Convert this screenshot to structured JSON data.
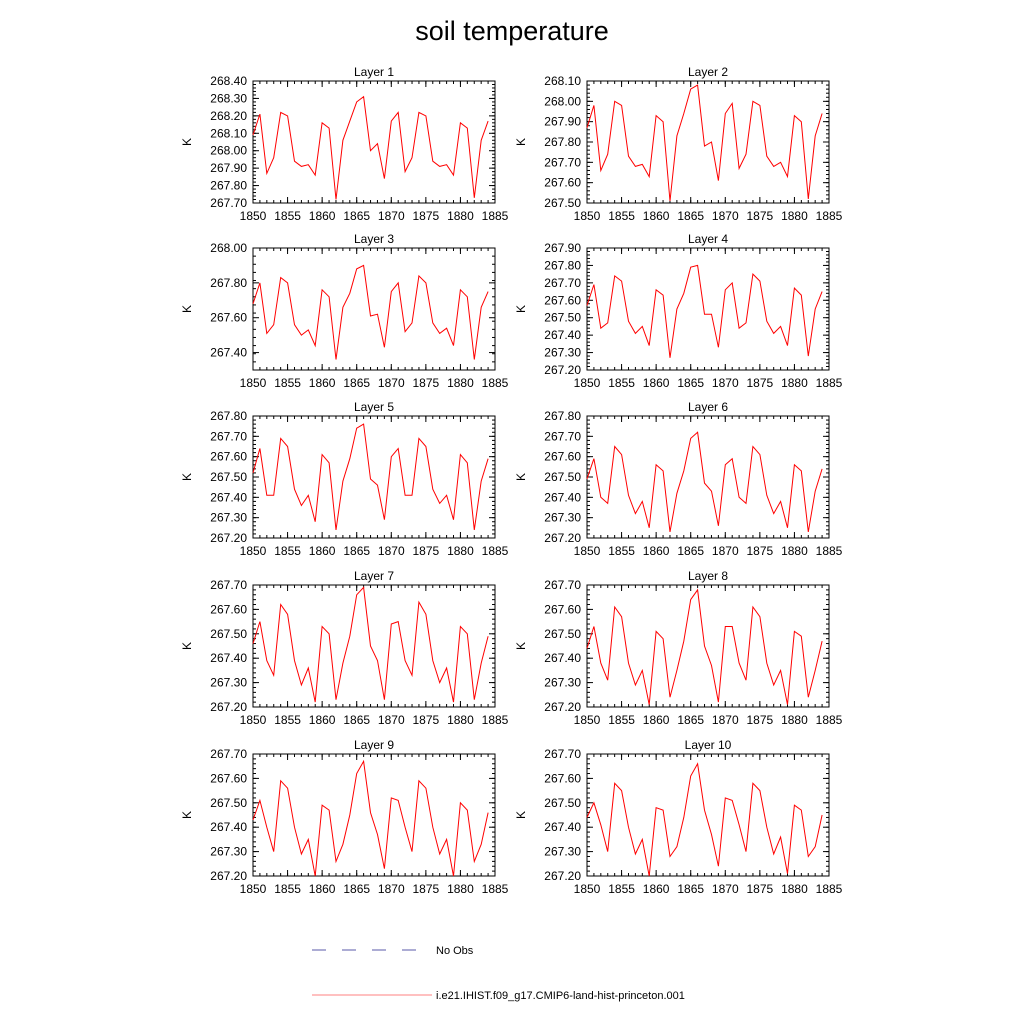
{
  "title": "soil temperature",
  "colors": {
    "model_line": "#ff0000",
    "obs_line": "#5a5aaa",
    "axis": "#000000"
  },
  "legend": [
    {
      "label": "No Obs",
      "style": "dashed",
      "color": "#5a5aaa"
    },
    {
      "label": "i.e21.IHIST.f09_g17.CMIP6-land-hist-princeton.001",
      "style": "solid",
      "color": "#ff8080"
    }
  ],
  "chart_data": [
    {
      "type": "line",
      "title": "Layer 1",
      "ylabel": "K",
      "ylim": [
        267.7,
        268.4
      ],
      "yticks": [
        "268.40",
        "268.30",
        "268.20",
        "268.10",
        "268.00",
        "267.90",
        "267.80",
        "267.70"
      ],
      "xlim": [
        1850,
        1885
      ],
      "xticks": [
        "1850",
        "1855",
        "1860",
        "1865",
        "1870",
        "1875",
        "1880",
        "1885"
      ],
      "x": [
        1850,
        1851,
        1852,
        1853,
        1854,
        1855,
        1856,
        1857,
        1858,
        1859,
        1860,
        1861,
        1862,
        1863,
        1864,
        1865,
        1866,
        1867,
        1868,
        1869,
        1870,
        1871,
        1872,
        1873,
        1874,
        1875,
        1876,
        1877,
        1878,
        1879,
        1880,
        1881,
        1882,
        1883,
        1884
      ],
      "series": [
        {
          "values": [
            268.09,
            268.21,
            267.87,
            267.96,
            268.22,
            268.2,
            267.94,
            267.91,
            267.92,
            267.86,
            268.16,
            268.13,
            267.72,
            268.06,
            268.17,
            268.28,
            268.31,
            268.0,
            268.04,
            267.84,
            268.17,
            268.22,
            267.88,
            267.96,
            268.22,
            268.2,
            267.94,
            267.91,
            267.92,
            267.86,
            268.16,
            268.13,
            267.73,
            268.06,
            268.17
          ]
        }
      ]
    },
    {
      "type": "line",
      "title": "Layer 2",
      "ylabel": "K",
      "ylim": [
        267.5,
        268.1
      ],
      "yticks": [
        "268.10",
        "268.00",
        "267.90",
        "267.80",
        "267.70",
        "267.60",
        "267.50"
      ],
      "xlim": [
        1850,
        1885
      ],
      "xticks": [
        "1850",
        "1855",
        "1860",
        "1865",
        "1870",
        "1875",
        "1880",
        "1885"
      ],
      "x": [
        1850,
        1851,
        1852,
        1853,
        1854,
        1855,
        1856,
        1857,
        1858,
        1859,
        1860,
        1861,
        1862,
        1863,
        1864,
        1865,
        1866,
        1867,
        1868,
        1869,
        1870,
        1871,
        1872,
        1873,
        1874,
        1875,
        1876,
        1877,
        1878,
        1879,
        1880,
        1881,
        1882,
        1883,
        1884
      ],
      "series": [
        {
          "values": [
            267.87,
            267.98,
            267.66,
            267.74,
            268.0,
            267.98,
            267.73,
            267.68,
            267.69,
            267.63,
            267.93,
            267.9,
            267.51,
            267.83,
            267.94,
            268.06,
            268.08,
            267.78,
            267.8,
            267.61,
            267.94,
            267.99,
            267.67,
            267.74,
            268.0,
            267.98,
            267.73,
            267.68,
            267.7,
            267.63,
            267.93,
            267.9,
            267.52,
            267.83,
            267.94
          ]
        }
      ]
    },
    {
      "type": "line",
      "title": "Layer 3",
      "ylabel": "K",
      "ylim": [
        267.3,
        268.0
      ],
      "yticks": [
        "268.00",
        "267.80",
        "267.60",
        "267.40"
      ],
      "xlim": [
        1850,
        1885
      ],
      "xticks": [
        "1850",
        "1855",
        "1860",
        "1865",
        "1870",
        "1875",
        "1880",
        "1885"
      ],
      "x": [
        1850,
        1851,
        1852,
        1853,
        1854,
        1855,
        1856,
        1857,
        1858,
        1859,
        1860,
        1861,
        1862,
        1863,
        1864,
        1865,
        1866,
        1867,
        1868,
        1869,
        1870,
        1871,
        1872,
        1873,
        1874,
        1875,
        1876,
        1877,
        1878,
        1879,
        1880,
        1881,
        1882,
        1883,
        1884
      ],
      "series": [
        {
          "values": [
            267.68,
            267.8,
            267.51,
            267.56,
            267.83,
            267.8,
            267.56,
            267.5,
            267.53,
            267.44,
            267.76,
            267.72,
            267.36,
            267.66,
            267.74,
            267.88,
            267.9,
            267.61,
            267.62,
            267.43,
            267.75,
            267.8,
            267.52,
            267.57,
            267.84,
            267.8,
            267.57,
            267.51,
            267.54,
            267.44,
            267.76,
            267.72,
            267.36,
            267.66,
            267.75
          ]
        }
      ]
    },
    {
      "type": "line",
      "title": "Layer 4",
      "ylabel": "K",
      "ylim": [
        267.2,
        267.9
      ],
      "yticks": [
        "267.90",
        "267.80",
        "267.70",
        "267.60",
        "267.50",
        "267.40",
        "267.30",
        "267.20"
      ],
      "xlim": [
        1850,
        1885
      ],
      "xticks": [
        "1850",
        "1855",
        "1860",
        "1865",
        "1870",
        "1875",
        "1880",
        "1885"
      ],
      "x": [
        1850,
        1851,
        1852,
        1853,
        1854,
        1855,
        1856,
        1857,
        1858,
        1859,
        1860,
        1861,
        1862,
        1863,
        1864,
        1865,
        1866,
        1867,
        1868,
        1869,
        1870,
        1871,
        1872,
        1873,
        1874,
        1875,
        1876,
        1877,
        1878,
        1879,
        1880,
        1881,
        1882,
        1883,
        1884
      ],
      "series": [
        {
          "values": [
            267.57,
            267.69,
            267.44,
            267.47,
            267.74,
            267.71,
            267.48,
            267.41,
            267.45,
            267.34,
            267.66,
            267.63,
            267.27,
            267.55,
            267.64,
            267.79,
            267.8,
            267.52,
            267.52,
            267.33,
            267.66,
            267.7,
            267.44,
            267.47,
            267.75,
            267.71,
            267.48,
            267.41,
            267.45,
            267.34,
            267.67,
            267.63,
            267.28,
            267.55,
            267.65
          ]
        }
      ]
    },
    {
      "type": "line",
      "title": "Layer 5",
      "ylabel": "K",
      "ylim": [
        267.2,
        267.8
      ],
      "yticks": [
        "267.80",
        "267.70",
        "267.60",
        "267.50",
        "267.40",
        "267.30",
        "267.20"
      ],
      "xlim": [
        1850,
        1885
      ],
      "xticks": [
        "1850",
        "1855",
        "1860",
        "1865",
        "1870",
        "1875",
        "1880",
        "1885"
      ],
      "x": [
        1850,
        1851,
        1852,
        1853,
        1854,
        1855,
        1856,
        1857,
        1858,
        1859,
        1860,
        1861,
        1862,
        1863,
        1864,
        1865,
        1866,
        1867,
        1868,
        1869,
        1870,
        1871,
        1872,
        1873,
        1874,
        1875,
        1876,
        1877,
        1878,
        1879,
        1880,
        1881,
        1882,
        1883,
        1884
      ],
      "series": [
        {
          "values": [
            267.52,
            267.64,
            267.41,
            267.41,
            267.69,
            267.65,
            267.44,
            267.36,
            267.41,
            267.28,
            267.61,
            267.57,
            267.24,
            267.48,
            267.59,
            267.74,
            267.76,
            267.49,
            267.46,
            267.29,
            267.6,
            267.64,
            267.41,
            267.41,
            267.69,
            267.65,
            267.44,
            267.37,
            267.41,
            267.29,
            267.61,
            267.57,
            267.24,
            267.48,
            267.59
          ]
        }
      ]
    },
    {
      "type": "line",
      "title": "Layer 6",
      "ylabel": "K",
      "ylim": [
        267.2,
        267.8
      ],
      "yticks": [
        "267.80",
        "267.70",
        "267.60",
        "267.50",
        "267.40",
        "267.30",
        "267.20"
      ],
      "xlim": [
        1850,
        1885
      ],
      "xticks": [
        "1850",
        "1855",
        "1860",
        "1865",
        "1870",
        "1875",
        "1880",
        "1885"
      ],
      "x": [
        1850,
        1851,
        1852,
        1853,
        1854,
        1855,
        1856,
        1857,
        1858,
        1859,
        1860,
        1861,
        1862,
        1863,
        1864,
        1865,
        1866,
        1867,
        1868,
        1869,
        1870,
        1871,
        1872,
        1873,
        1874,
        1875,
        1876,
        1877,
        1878,
        1879,
        1880,
        1881,
        1882,
        1883,
        1884
      ],
      "series": [
        {
          "values": [
            267.49,
            267.59,
            267.4,
            267.37,
            267.65,
            267.61,
            267.41,
            267.32,
            267.38,
            267.25,
            267.56,
            267.53,
            267.23,
            267.42,
            267.53,
            267.69,
            267.72,
            267.47,
            267.43,
            267.26,
            267.56,
            267.59,
            267.4,
            267.37,
            267.65,
            267.61,
            267.41,
            267.32,
            267.38,
            267.25,
            267.56,
            267.53,
            267.23,
            267.43,
            267.54
          ]
        }
      ]
    },
    {
      "type": "line",
      "title": "Layer 7",
      "ylabel": "K",
      "ylim": [
        267.2,
        267.7
      ],
      "yticks": [
        "267.70",
        "267.60",
        "267.50",
        "267.40",
        "267.30",
        "267.20"
      ],
      "xlim": [
        1850,
        1885
      ],
      "xticks": [
        "1850",
        "1855",
        "1860",
        "1865",
        "1870",
        "1875",
        "1880",
        "1885"
      ],
      "x": [
        1850,
        1851,
        1852,
        1853,
        1854,
        1855,
        1856,
        1857,
        1858,
        1859,
        1860,
        1861,
        1862,
        1863,
        1864,
        1865,
        1866,
        1867,
        1868,
        1869,
        1870,
        1871,
        1872,
        1873,
        1874,
        1875,
        1876,
        1877,
        1878,
        1879,
        1880,
        1881,
        1882,
        1883,
        1884
      ],
      "series": [
        {
          "values": [
            267.46,
            267.55,
            267.39,
            267.33,
            267.62,
            267.58,
            267.39,
            267.29,
            267.36,
            267.22,
            267.53,
            267.5,
            267.23,
            267.38,
            267.49,
            267.66,
            267.69,
            267.45,
            267.39,
            267.23,
            267.54,
            267.55,
            267.39,
            267.33,
            267.63,
            267.58,
            267.39,
            267.3,
            267.36,
            267.22,
            267.53,
            267.5,
            267.23,
            267.38,
            267.49
          ]
        }
      ]
    },
    {
      "type": "line",
      "title": "Layer 8",
      "ylabel": "K",
      "ylim": [
        267.2,
        267.7
      ],
      "yticks": [
        "267.70",
        "267.60",
        "267.50",
        "267.40",
        "267.30",
        "267.20"
      ],
      "xlim": [
        1850,
        1885
      ],
      "xticks": [
        "1850",
        "1855",
        "1860",
        "1865",
        "1870",
        "1875",
        "1880",
        "1885"
      ],
      "x": [
        1850,
        1851,
        1852,
        1853,
        1854,
        1855,
        1856,
        1857,
        1858,
        1859,
        1860,
        1861,
        1862,
        1863,
        1864,
        1865,
        1866,
        1867,
        1868,
        1869,
        1870,
        1871,
        1872,
        1873,
        1874,
        1875,
        1876,
        1877,
        1878,
        1879,
        1880,
        1881,
        1882,
        1883,
        1884
      ],
      "series": [
        {
          "values": [
            267.44,
            267.53,
            267.38,
            267.31,
            267.61,
            267.57,
            267.38,
            267.29,
            267.35,
            267.21,
            267.51,
            267.48,
            267.24,
            267.35,
            267.47,
            267.64,
            267.68,
            267.45,
            267.37,
            267.22,
            267.53,
            267.53,
            267.38,
            267.31,
            267.61,
            267.57,
            267.38,
            267.29,
            267.35,
            267.21,
            267.51,
            267.49,
            267.24,
            267.35,
            267.47
          ]
        }
      ]
    },
    {
      "type": "line",
      "title": "Layer 9",
      "ylabel": "K",
      "ylim": [
        267.2,
        267.7
      ],
      "yticks": [
        "267.70",
        "267.60",
        "267.50",
        "267.40",
        "267.30",
        "267.20"
      ],
      "xlim": [
        1850,
        1885
      ],
      "xticks": [
        "1850",
        "1855",
        "1860",
        "1865",
        "1870",
        "1875",
        "1880",
        "1885"
      ],
      "x": [
        1850,
        1851,
        1852,
        1853,
        1854,
        1855,
        1856,
        1857,
        1858,
        1859,
        1860,
        1861,
        1862,
        1863,
        1864,
        1865,
        1866,
        1867,
        1868,
        1869,
        1870,
        1871,
        1872,
        1873,
        1874,
        1875,
        1876,
        1877,
        1878,
        1879,
        1880,
        1881,
        1882,
        1883,
        1884
      ],
      "series": [
        {
          "values": [
            267.43,
            267.51,
            267.4,
            267.3,
            267.59,
            267.56,
            267.4,
            267.29,
            267.35,
            267.2,
            267.49,
            267.47,
            267.26,
            267.33,
            267.45,
            267.62,
            267.67,
            267.46,
            267.37,
            267.23,
            267.52,
            267.51,
            267.4,
            267.3,
            267.59,
            267.56,
            267.4,
            267.29,
            267.35,
            267.2,
            267.5,
            267.47,
            267.26,
            267.33,
            267.46
          ]
        }
      ]
    },
    {
      "type": "line",
      "title": "Layer 10",
      "ylabel": "K",
      "ylim": [
        267.2,
        267.7
      ],
      "yticks": [
        "267.70",
        "267.60",
        "267.50",
        "267.40",
        "267.30",
        "267.20"
      ],
      "xlim": [
        1850,
        1885
      ],
      "xticks": [
        "1850",
        "1855",
        "1860",
        "1865",
        "1870",
        "1875",
        "1880",
        "1885"
      ],
      "x": [
        1850,
        1851,
        1852,
        1853,
        1854,
        1855,
        1856,
        1857,
        1858,
        1859,
        1860,
        1861,
        1862,
        1863,
        1864,
        1865,
        1866,
        1867,
        1868,
        1869,
        1870,
        1871,
        1872,
        1873,
        1874,
        1875,
        1876,
        1877,
        1878,
        1879,
        1880,
        1881,
        1882,
        1883,
        1884
      ],
      "series": [
        {
          "values": [
            267.44,
            267.5,
            267.41,
            267.3,
            267.58,
            267.55,
            267.4,
            267.29,
            267.35,
            267.2,
            267.48,
            267.47,
            267.28,
            267.32,
            267.44,
            267.61,
            267.66,
            267.47,
            267.37,
            267.24,
            267.52,
            267.51,
            267.41,
            267.3,
            267.58,
            267.55,
            267.4,
            267.29,
            267.36,
            267.21,
            267.49,
            267.47,
            267.28,
            267.32,
            267.45
          ]
        }
      ]
    }
  ]
}
